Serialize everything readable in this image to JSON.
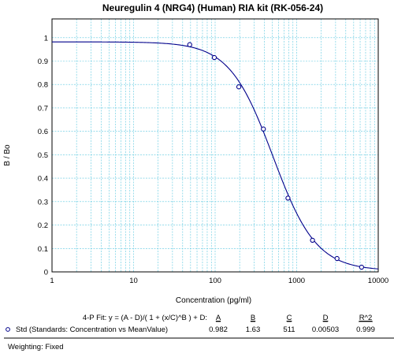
{
  "chart_data": {
    "type": "scatter",
    "title": "Neuregulin 4 (NRG4) (Human)  RIA kit (RK-056-24)",
    "xlabel": "Concentration (pg/ml)",
    "ylabel": "B / Bo",
    "x_scale": "log",
    "xlim": [
      1,
      10000
    ],
    "ylim": [
      0,
      1.08
    ],
    "x_tick_labels": [
      "1",
      "10",
      "100",
      "1000",
      "10000"
    ],
    "y_tick_labels": [
      "0",
      "0.1",
      "0.2",
      "0.3",
      "0.4",
      "0.5",
      "0.6",
      "0.7",
      "0.8",
      "0.9",
      "1"
    ],
    "grid": true,
    "series": [
      {
        "name": "Std (Standards: Concentration vs MeanValue)",
        "x": [
          48.8,
          97.7,
          195.3,
          390.6,
          781.3,
          1562.5,
          3125,
          6250
        ],
        "y": [
          0.97,
          0.915,
          0.79,
          0.61,
          0.315,
          0.135,
          0.057,
          0.02
        ],
        "color": "#00008b",
        "marker": "open-circle"
      }
    ],
    "fit": {
      "label": "4-P Fit: y = (A - D)/( 1 + (x/C)^B ) + D:",
      "A": 0.982,
      "B": 1.63,
      "C": 511,
      "D": 0.00503,
      "color": "#00008b"
    },
    "fit_table": {
      "headers": [
        "A",
        "B",
        "C",
        "D",
        "R^2"
      ],
      "values": [
        "0.982",
        "1.63",
        "511",
        "0.00503",
        "0.999"
      ]
    },
    "weighting": "Weighting: Fixed"
  },
  "colors": {
    "grid": "#5bc8e0",
    "series": "#00008b"
  }
}
